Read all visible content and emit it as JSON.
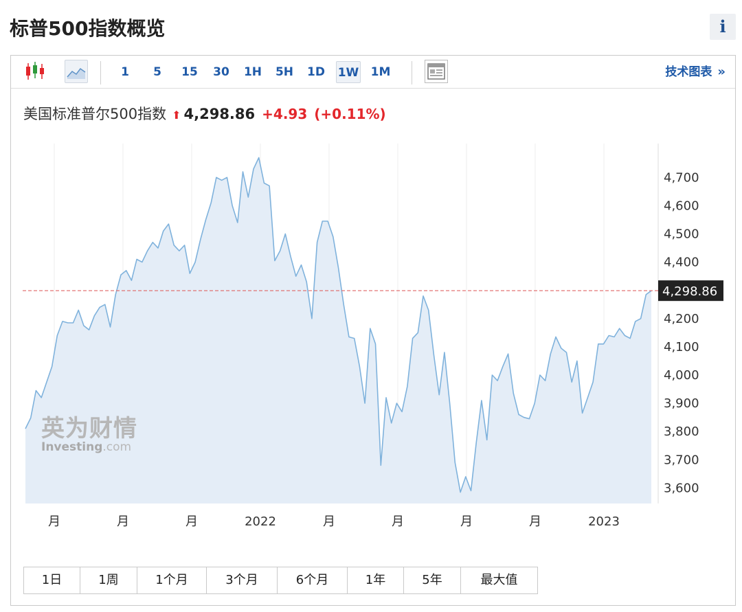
{
  "header": {
    "title": "标普500指数概览",
    "info_label": "i"
  },
  "toolbar": {
    "intervals": [
      {
        "label": "1",
        "active": false
      },
      {
        "label": "5",
        "active": false
      },
      {
        "label": "15",
        "active": false
      },
      {
        "label": "30",
        "active": false
      },
      {
        "label": "1H",
        "active": false
      },
      {
        "label": "5H",
        "active": false
      },
      {
        "label": "1D",
        "active": false
      },
      {
        "label": "1W",
        "active": true
      },
      {
        "label": "1M",
        "active": false
      }
    ],
    "tech_chart_link": "技术图表",
    "tech_chart_chevron": "»"
  },
  "quote": {
    "name": "美国标准普尔500指数",
    "arrow": "⬆",
    "price": "4,298.86",
    "change": "+4.93",
    "change_pct": "(+0.11%)"
  },
  "colors": {
    "line": "#7fb2dc",
    "fill": "#e4edf7",
    "up": "#e3262b",
    "link": "#1f5aa8",
    "ref_line": "#e06666",
    "price_tag_bg": "#222222"
  },
  "watermark": {
    "cn": "英为财情",
    "en_main": "Investing",
    "en_suffix": ".com"
  },
  "chart_data": {
    "type": "area",
    "y_ticks": [
      4700,
      4600,
      4500,
      4400,
      4300,
      4200,
      4100,
      4000,
      3900,
      3800,
      3700,
      3600
    ],
    "y_tick_labels": [
      "4,700",
      "4,600",
      "4,500",
      "4,400",
      "4,298.86",
      "4,200",
      "4,100",
      "4,000",
      "3,900",
      "3,800",
      "3,700",
      "3,600"
    ],
    "ylim": [
      3545,
      4820
    ],
    "x_tick_labels": [
      "月",
      "月",
      "月",
      "2022",
      "月",
      "月",
      "月",
      "月",
      "2023",
      "月"
    ],
    "current_price": 4298.86,
    "current_price_label": "4,298.86",
    "grid": "vertical",
    "series": [
      {
        "values": [
          3810,
          3848,
          3945,
          3920,
          3975,
          4030,
          4140,
          4190,
          4185,
          4185,
          4230,
          4175,
          4160,
          4210,
          4240,
          4250,
          4170,
          4285,
          4355,
          4370,
          4335,
          4410,
          4400,
          4440,
          4470,
          4450,
          4510,
          4535,
          4460,
          4440,
          4460,
          4360,
          4400,
          4480,
          4550,
          4610,
          4700,
          4690,
          4700,
          4600,
          4540,
          4720,
          4630,
          4730,
          4770,
          4680,
          4670,
          4405,
          4440,
          4500,
          4420,
          4350,
          4390,
          4330,
          4200,
          4470,
          4545,
          4545,
          4490,
          4380,
          4250,
          4135,
          4130,
          4030,
          3900,
          4165,
          4110,
          3680,
          3920,
          3830,
          3900,
          3870,
          3960,
          4130,
          4150,
          4280,
          4230,
          4070,
          3930,
          4080,
          3900,
          3690,
          3585,
          3640,
          3590,
          3760,
          3910,
          3770,
          4000,
          3980,
          4030,
          4075,
          3935,
          3860,
          3850,
          3845,
          3900,
          4000,
          3980,
          4075,
          4135,
          4095,
          4080,
          3975,
          4050,
          3865,
          3920,
          3975,
          4110,
          4110,
          4140,
          4135,
          4165,
          4140,
          4130,
          4190,
          4200,
          4285,
          4298.86
        ]
      }
    ]
  },
  "ranges": [
    "1日",
    "1周",
    "1个月",
    "3个月",
    "6个月",
    "1年",
    "5年",
    "最大值"
  ]
}
